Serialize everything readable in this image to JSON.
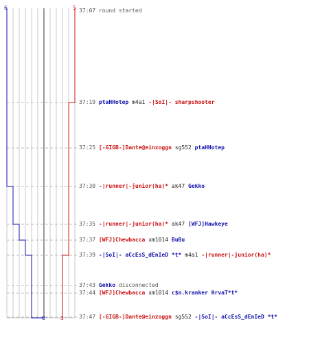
{
  "colors": {
    "team_blue": "#1010aa",
    "team_red": "#cc1111",
    "grid": "#c8c8c8",
    "center": "#555555",
    "dash": "#bdbdbd",
    "time": "#555555"
  },
  "scores": {
    "blue_start": "6",
    "red_start": "5",
    "blue_end": "0",
    "red_end": "3"
  },
  "blue_alive_steps": [
    6,
    6,
    5,
    4,
    3,
    2,
    1,
    0
  ],
  "red_alive_steps": [
    5,
    4,
    3
  ],
  "events": [
    {
      "time": "37:07",
      "type": "message",
      "text": "round started"
    },
    {
      "time": "37:19",
      "type": "kill",
      "killer": "ptaHHotep",
      "killer_team": "blue",
      "weapon": "m4a1",
      "victim": "-|SoI|- sharpshooter",
      "victim_team": "red"
    },
    {
      "time": "37:25",
      "type": "kill",
      "killer": "[-GIGB-]Dante@einzoggn",
      "killer_team": "red",
      "weapon": "sg552",
      "victim": "ptaHHotep",
      "victim_team": "blue"
    },
    {
      "time": "37:30",
      "type": "kill",
      "killer": "-|runner|-junior(ha)*",
      "killer_team": "red",
      "weapon": "ak47",
      "victim": "Gekko",
      "victim_team": "blue"
    },
    {
      "time": "37:35",
      "type": "kill",
      "killer": "-|runner|-junior(ha)*",
      "killer_team": "red",
      "weapon": "ak47",
      "victim": "[WFJ]Hawkeye",
      "victim_team": "blue"
    },
    {
      "time": "37:37",
      "type": "kill",
      "killer": "[WFJ]Chewbacca",
      "killer_team": "red",
      "weapon": "xm1014",
      "victim": "BuBu",
      "victim_team": "blue"
    },
    {
      "time": "37:39",
      "type": "kill",
      "killer": "-|SoI|- aCcEsS_dEnIeD *t*",
      "killer_team": "blue",
      "weapon": "m4a1",
      "victim": "-|runner|-junior(ha)*",
      "victim_team": "red"
    },
    {
      "time": "37:43",
      "type": "disconnect",
      "player": "Gekko",
      "player_team": "blue",
      "text": "disconnected"
    },
    {
      "time": "37:44",
      "type": "kill",
      "killer": "[WFJ]Chewbacca",
      "killer_team": "red",
      "weapon": "xm1014",
      "victim": "c$n.kranker HrvaT*t*",
      "victim_team": "blue"
    },
    {
      "time": "37:47",
      "type": "kill",
      "killer": "[-GIGB-]Dante@einzoggn",
      "killer_team": "red",
      "weapon": "sg552",
      "victim": "-|SoI|- aCcEsS_dEnIeD *t*",
      "victim_team": "blue"
    }
  ]
}
